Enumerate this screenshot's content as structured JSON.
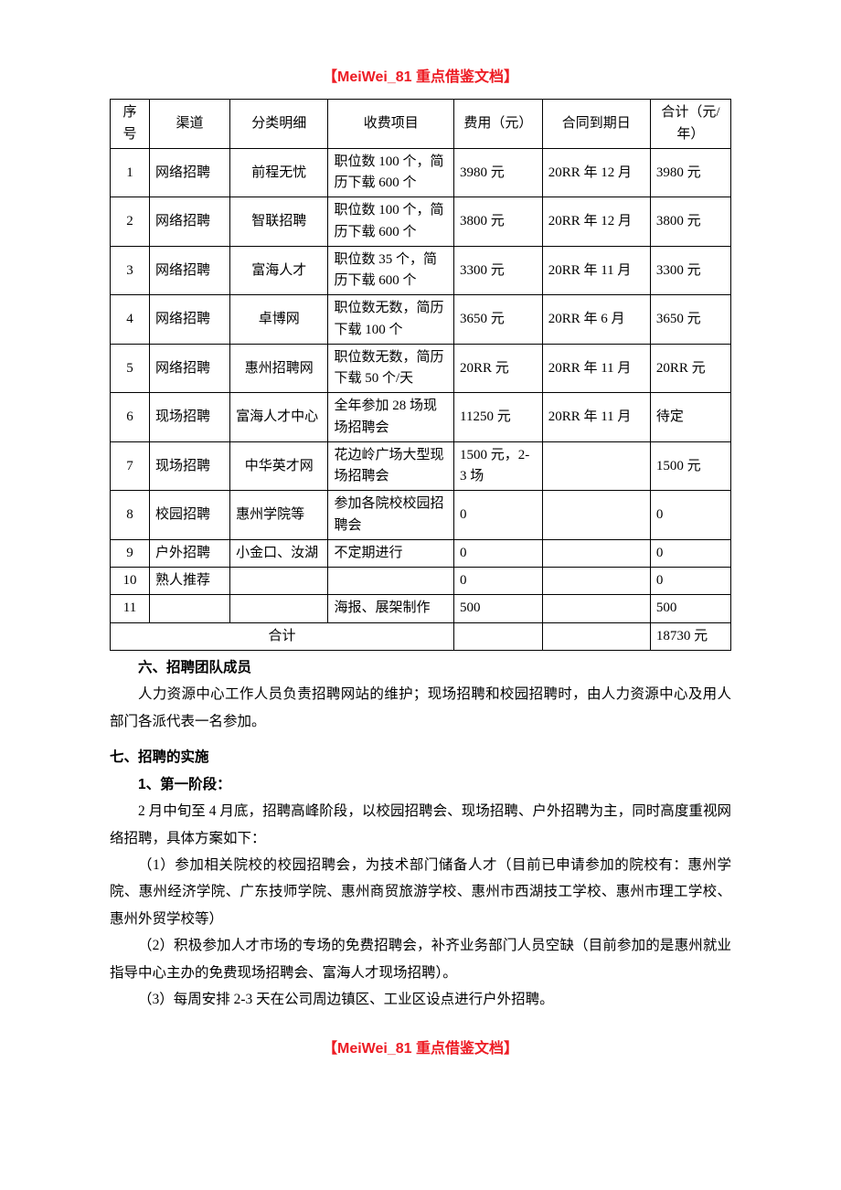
{
  "header": "【MeiWei_81 重点借鉴文档】",
  "footer": "【MeiWei_81 重点借鉴文档】",
  "table": {
    "columns": [
      "序号",
      "渠道",
      "分类明细",
      "收费项目",
      "费用（元）",
      "合同到期日",
      "合计（元/年）"
    ],
    "col_align": [
      "center",
      "left",
      "left",
      "left",
      "left",
      "left",
      "left"
    ],
    "rows": [
      [
        "1",
        "网络招聘",
        "前程无忧",
        "职位数 100 个，简历下载 600 个",
        "3980 元",
        "20RR 年 12 月",
        "3980 元"
      ],
      [
        "2",
        "网络招聘",
        "智联招聘",
        "职位数 100 个，简历下载 600 个",
        "3800 元",
        "20RR 年 12 月",
        "3800 元"
      ],
      [
        "3",
        "网络招聘",
        "富海人才",
        "职位数 35 个，简历下载 600 个",
        "3300 元",
        "20RR 年 11 月",
        "3300 元"
      ],
      [
        "4",
        "网络招聘",
        "卓博网",
        "职位数无数，简历下载 100 个",
        "3650 元",
        "20RR 年 6 月",
        "3650 元"
      ],
      [
        "5",
        "网络招聘",
        "惠州招聘网",
        "职位数无数，简历下载 50 个/天",
        "20RR 元",
        "20RR 年 11 月",
        "20RR 元"
      ],
      [
        "6",
        "现场招聘",
        "富海人才中心",
        "全年参加 28 场现场招聘会",
        "11250 元",
        "20RR 年 11 月",
        "待定"
      ],
      [
        "7",
        "现场招聘",
        "中华英才网",
        "花边岭广场大型现场招聘会",
        "1500 元，2-3 场",
        "",
        "1500 元"
      ],
      [
        "8",
        "校园招聘",
        "惠州学院等",
        "参加各院校校园招聘会",
        "0",
        "",
        "0"
      ],
      [
        "9",
        "户外招聘",
        "小金口、汝湖",
        "不定期进行",
        "0",
        "",
        "0"
      ],
      [
        "10",
        "熟人推荐",
        "",
        "",
        "0",
        "",
        "0"
      ],
      [
        "11",
        "",
        "",
        "海报、展架制作",
        "500",
        "",
        "500"
      ]
    ],
    "totals_label": "合计",
    "totals_value": "18730 元"
  },
  "sections": {
    "s6_title": "六、招聘团队成员",
    "s6_p1": "人力资源中心工作人员负责招聘网站的维护；现场招聘和校园招聘时，由人力资源中心及用人部门各派代表一名参加。",
    "s7_title": "七、招聘的实施",
    "s7_sub1": "1、第一阶段：",
    "s7_p1": "2 月中旬至 4 月底，招聘高峰阶段，以校园招聘会、现场招聘、户外招聘为主，同时高度重视网络招聘，具体方案如下：",
    "s7_p2": "（1）参加相关院校的校园招聘会，为技术部门储备人才（目前已申请参加的院校有：惠州学院、惠州经济学院、广东技师学院、惠州商贸旅游学校、惠州市西湖技工学校、惠州市理工学校、惠州外贸学校等）",
    "s7_p3": "（2）积极参加人才市场的专场的免费招聘会，补齐业务部门人员空缺（目前参加的是惠州就业指导中心主办的免费现场招聘会、富海人才现场招聘）。",
    "s7_p4": "（3）每周安排 2-3 天在公司周边镇区、工业区设点进行户外招聘。"
  }
}
